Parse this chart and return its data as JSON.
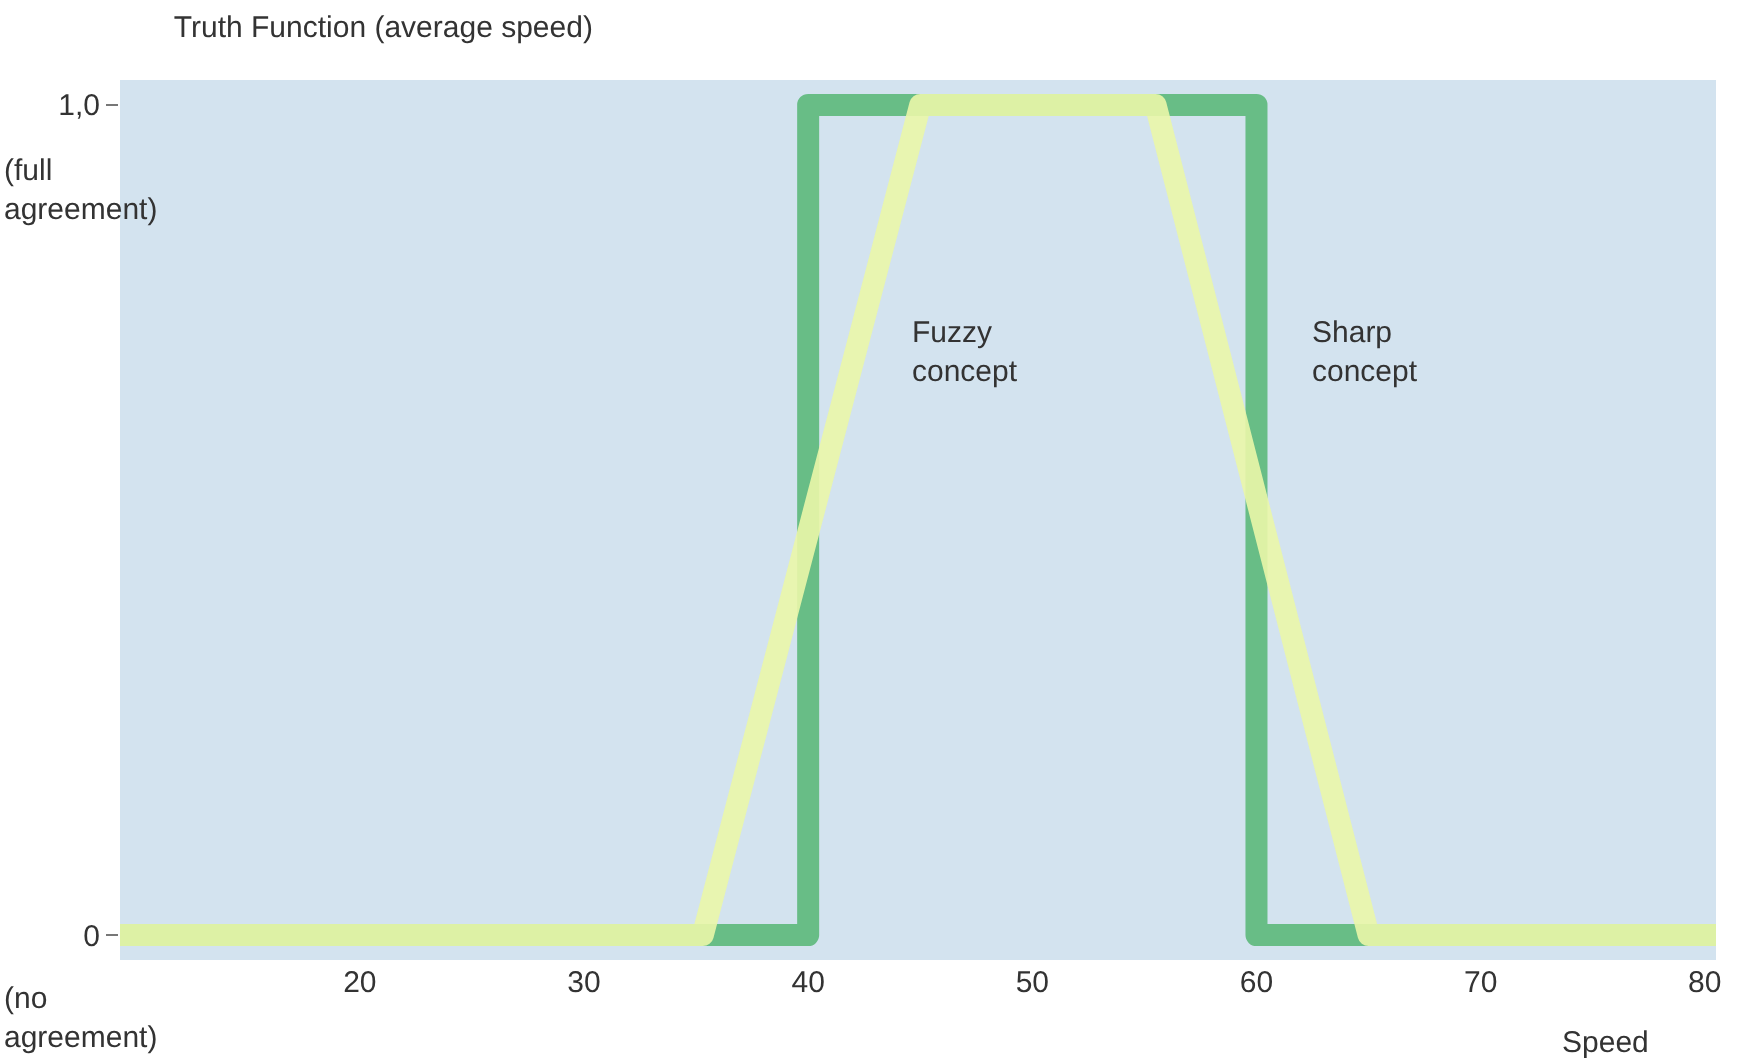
{
  "chart_data": {
    "type": "line",
    "title": "Truth Function (average speed)",
    "xlabel": "Speed",
    "xlim": [
      9.3,
      80.5
    ],
    "xticks": [
      20,
      30,
      40,
      50,
      60,
      70,
      80
    ],
    "ylim": [
      -0.03,
      1.03
    ],
    "yticks": [
      0,
      {
        "value": 1,
        "label": "1,0"
      }
    ],
    "grid": false,
    "legend": false,
    "line_style": "solid",
    "series": [
      {
        "name": "Sharp concept",
        "color": "#5cb87a",
        "x": [
          9.3,
          40,
          40,
          60,
          60,
          80.5
        ],
        "values": [
          0,
          0,
          1,
          1,
          0,
          0
        ]
      },
      {
        "name": "Fuzzy concept",
        "color": "#eaf6a8",
        "x": [
          9.3,
          35.3,
          45,
          55.5,
          65,
          80.5
        ],
        "values": [
          0,
          0,
          1,
          1,
          0,
          0
        ]
      }
    ],
    "annotations": [
      "(full agreement)",
      "(no agreement)"
    ]
  }
}
